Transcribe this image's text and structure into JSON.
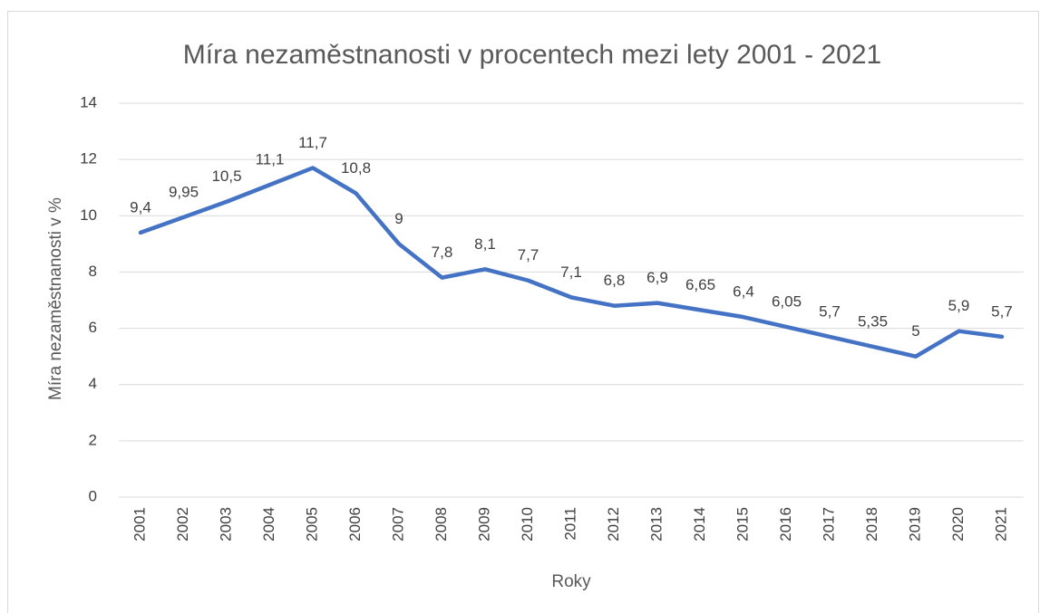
{
  "chart_data": {
    "type": "line",
    "title": "Míra nezaměstnanosti v procentech mezi lety 2001 - 2021",
    "x_label": "Roky",
    "y_label": "Míra nezaměstnanosti v %",
    "categories": [
      "2001",
      "2002",
      "2003",
      "2004",
      "2005",
      "2006",
      "2007",
      "2008",
      "2009",
      "2010",
      "2011",
      "2012",
      "2013",
      "2014",
      "2015",
      "2016",
      "2017",
      "2018",
      "2019",
      "2020",
      "2021"
    ],
    "values": [
      9.4,
      9.95,
      10.5,
      11.1,
      11.7,
      10.8,
      9,
      7.8,
      8.1,
      7.7,
      7.1,
      6.8,
      6.9,
      6.65,
      6.4,
      6.05,
      5.7,
      5.35,
      5,
      5.9,
      5.7
    ],
    "value_labels": [
      "9,4",
      "9,95",
      "10,5",
      "11,1",
      "11,7",
      "10,8",
      "9",
      "7,8",
      "8,1",
      "7,7",
      "7,1",
      "6,8",
      "6,9",
      "6,65",
      "6,4",
      "6,05",
      "5,7",
      "5,35",
      "5",
      "5,9",
      "5,7"
    ],
    "color": "#4472c4",
    "ylim": [
      0,
      14
    ],
    "yticks": [
      0,
      2,
      4,
      6,
      8,
      10,
      12,
      14
    ],
    "grid": true
  }
}
